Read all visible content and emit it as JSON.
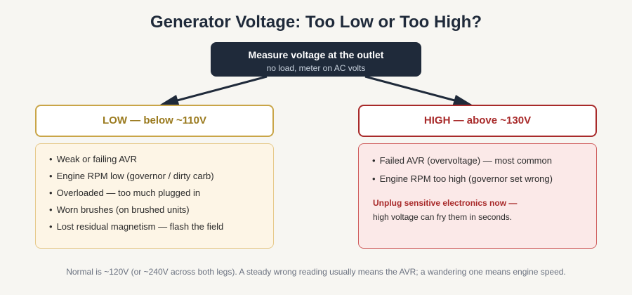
{
  "title": "Generator Voltage: Too Low or Too High?",
  "start": {
    "label": "Measure voltage at the outlet",
    "sublabel": "no load, meter on AC volts"
  },
  "low": {
    "heading": "LOW — below ~110V",
    "items": [
      "Weak or failing AVR",
      "Engine RPM low (governor / dirty carb)",
      "Overloaded — too much plugged in",
      "Worn brushes (on brushed units)",
      "Lost residual magnetism — flash the field"
    ]
  },
  "high": {
    "heading": "HIGH — above ~130V",
    "items": [
      "Failed AVR (overvoltage) — most common",
      "Engine RPM too high (governor set wrong)"
    ],
    "warning_title": "Unplug sensitive electronics now —",
    "warning_text": "high voltage can fry them in seconds."
  },
  "footer": "Normal is ~120V (or ~240V across both legs). A steady wrong reading usually means the AVR; a wandering one means engine speed.",
  "colors": {
    "dark": "#1f2a3a",
    "low_accent": "#c9a548",
    "high_accent": "#a82a2a"
  }
}
